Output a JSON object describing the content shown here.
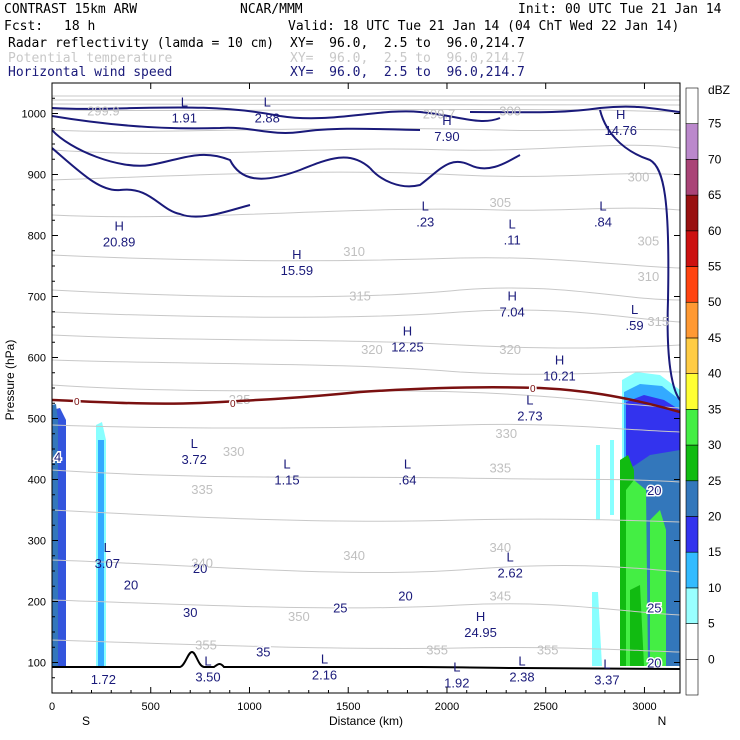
{
  "header": {
    "model": "CONTRAST 15km ARW",
    "org": "NCAR/MMM",
    "init": "Init: 00 UTC Tue 21 Jan 14",
    "fcst_label": "Fcst:",
    "fcst_value": "18 h",
    "valid": "Valid: 18 UTC Tue 21 Jan 14 (04 ChT Wed 22 Jan 14)",
    "fields": [
      {
        "name": "Radar reflectivity (lamda = 10 cm)",
        "xy": "XY=  96.0,  2.5 to  96.0,214.7",
        "color": "#000000"
      },
      {
        "name": "Potential temperature",
        "xy": "XY=  96.0,  2.5 to  96.0,214.7",
        "color": "#c8c8c8"
      },
      {
        "name": "Horizontal wind speed",
        "xy": "XY=  96.0,  2.5 to  96.0,214.7",
        "color": "#1a1a7a"
      }
    ]
  },
  "chart_data": {
    "type": "contour",
    "xlabel": "Distance (km)",
    "ylabel": "Pressure (hPa)",
    "xlim": [
      0,
      3180
    ],
    "ylim": [
      1050,
      50
    ],
    "x_ticks": [
      0,
      500,
      1000,
      1500,
      2000,
      2500,
      3000
    ],
    "y_ticks": [
      100,
      200,
      300,
      400,
      500,
      600,
      700,
      800,
      900,
      1000
    ],
    "x_end_labels": {
      "left": "S",
      "right": "N"
    },
    "colorbar": {
      "unit": "dBZ",
      "levels": [
        0,
        5,
        10,
        15,
        20,
        25,
        30,
        35,
        40,
        45,
        50,
        55,
        60,
        65,
        70,
        75
      ],
      "colors": [
        "#ffffff",
        "#ffffff",
        "#99ffff",
        "#33bbff",
        "#3333ee",
        "#3377bb",
        "#11bb11",
        "#44ee44",
        "#ffff33",
        "#ffcc44",
        "#ff9933",
        "#ff4411",
        "#cc1111",
        "#991111",
        "#aa4477",
        "#bb88cc",
        "#ffffff"
      ]
    },
    "theta_labels": [
      {
        "text": "355",
        "x": 780,
        "p": 128
      },
      {
        "text": "355",
        "x": 2510,
        "p": 120
      },
      {
        "text": "355",
        "x": 1950,
        "p": 120
      },
      {
        "text": "350",
        "x": 1250,
        "p": 175
      },
      {
        "text": "345",
        "x": 2270,
        "p": 208
      },
      {
        "text": "340",
        "x": 760,
        "p": 262
      },
      {
        "text": "340",
        "x": 1530,
        "p": 275
      },
      {
        "text": "340",
        "x": 2270,
        "p": 288
      },
      {
        "text": "335",
        "x": 760,
        "p": 383
      },
      {
        "text": "335",
        "x": 2270,
        "p": 418
      },
      {
        "text": "330",
        "x": 920,
        "p": 445
      },
      {
        "text": "330",
        "x": 2300,
        "p": 475
      },
      {
        "text": "325",
        "x": 950,
        "p": 530
      },
      {
        "text": "320",
        "x": 1620,
        "p": 612
      },
      {
        "text": "320",
        "x": 2320,
        "p": 612
      },
      {
        "text": "315",
        "x": 1560,
        "p": 700
      },
      {
        "text": "310",
        "x": 1530,
        "p": 773
      },
      {
        "text": "305",
        "x": 2270,
        "p": 853
      },
      {
        "text": "300",
        "x": 2970,
        "p": 895
      },
      {
        "text": "299.9",
        "x": 260,
        "p": 1003
      },
      {
        "text": "299.7",
        "x": 1960,
        "p": 998
      },
      {
        "text": "300",
        "x": 2320,
        "p": 1003
      },
      {
        "text": "315",
        "x": 3070,
        "p": 658
      },
      {
        "text": "310",
        "x": 3020,
        "p": 732
      },
      {
        "text": "305",
        "x": 3020,
        "p": 790
      }
    ],
    "wind_labels": [
      {
        "text": "35",
        "x": 1070,
        "p": 118
      },
      {
        "text": "30",
        "x": 700,
        "p": 183
      },
      {
        "text": "25",
        "x": 1460,
        "p": 190
      },
      {
        "text": "20",
        "x": 400,
        "p": 228
      },
      {
        "text": "20",
        "x": 750,
        "p": 255
      },
      {
        "text": "20",
        "x": 1790,
        "p": 210
      },
      {
        "text": "20",
        "x": 3050,
        "p": 100
      },
      {
        "text": "25",
        "x": 3050,
        "p": 190
      },
      {
        "text": "20",
        "x": 3050,
        "p": 383
      },
      {
        "text": "14",
        "x": 10,
        "p": 438
      }
    ],
    "zero_isotherm_label": "0",
    "hl_labels": [
      {
        "mark": "",
        "value": "1.72",
        "x": 260,
        "p": 88
      },
      {
        "mark": "L",
        "value": "3.50",
        "x": 790,
        "p": 92
      },
      {
        "mark": "L",
        "value": "2.16",
        "x": 1380,
        "p": 95
      },
      {
        "mark": "L",
        "value": "1.92",
        "x": 2050,
        "p": 82
      },
      {
        "mark": "L",
        "value": "2.38",
        "x": 2380,
        "p": 92
      },
      {
        "mark": "L",
        "value": "3.37",
        "x": 2810,
        "p": 87
      },
      {
        "mark": "H",
        "value": "24.95",
        "x": 2170,
        "p": 165
      },
      {
        "mark": "L",
        "value": "3.07",
        "x": 280,
        "p": 278
      },
      {
        "mark": "L",
        "value": "2.62",
        "x": 2320,
        "p": 262
      },
      {
        "mark": "L",
        "value": "1.15",
        "x": 1190,
        "p": 415
      },
      {
        "mark": "L",
        "value": ".64",
        "x": 1800,
        "p": 415
      },
      {
        "mark": "L",
        "value": "3.72",
        "x": 720,
        "p": 448
      },
      {
        "mark": "L",
        "value": "2.73",
        "x": 2420,
        "p": 520
      },
      {
        "mark": "H",
        "value": "10.21",
        "x": 2570,
        "p": 585
      },
      {
        "mark": "H",
        "value": "12.25",
        "x": 1800,
        "p": 633
      },
      {
        "mark": "L",
        "value": ".59",
        "x": 2950,
        "p": 668
      },
      {
        "mark": "H",
        "value": "7.04",
        "x": 2330,
        "p": 690
      },
      {
        "mark": "H",
        "value": "15.59",
        "x": 1240,
        "p": 758
      },
      {
        "mark": "H",
        "value": "20.89",
        "x": 340,
        "p": 805
      },
      {
        "mark": "L",
        "value": ".11",
        "x": 2330,
        "p": 808
      },
      {
        "mark": "L",
        "value": ".23",
        "x": 1890,
        "p": 838
      },
      {
        "mark": "L",
        "value": ".84",
        "x": 2790,
        "p": 838
      },
      {
        "mark": "H",
        "value": "7.90",
        "x": 2000,
        "p": 978
      },
      {
        "mark": "H",
        "value": "14.76",
        "x": 2880,
        "p": 988
      },
      {
        "mark": "L",
        "value": "1.91",
        "x": 670,
        "p": 1008
      },
      {
        "mark": "L",
        "value": "2.88",
        "x": 1090,
        "p": 1008
      }
    ]
  }
}
